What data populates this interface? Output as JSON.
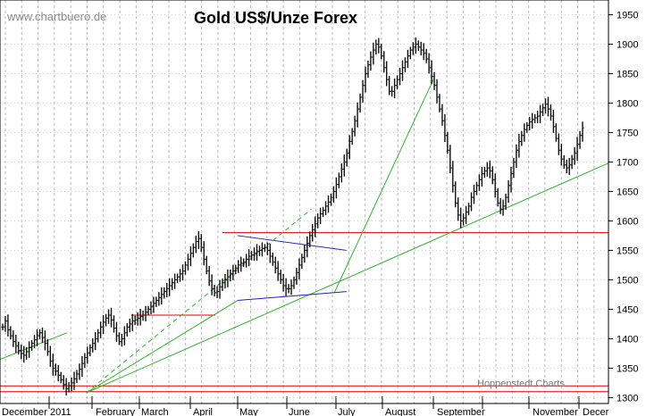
{
  "watermark": "www.chartbuero.de",
  "credit": "Hoppenstedt Charts",
  "chart_data": {
    "type": "ohlc",
    "title": "Gold US$/Unze Forex",
    "xlabel": "",
    "ylabel": "",
    "ylim": [
      1290,
      1975
    ],
    "y_ticks": [
      1300,
      1350,
      1400,
      1450,
      1500,
      1550,
      1600,
      1650,
      1700,
      1750,
      1800,
      1850,
      1900,
      1950
    ],
    "grid": true,
    "month_labels": [
      "December",
      "2011",
      "February",
      "March",
      "April",
      "May",
      "June",
      "July",
      "August",
      "September",
      "November",
      "Decer"
    ],
    "series": [
      {
        "values": [
          1420,
          1430,
          1415,
          1405,
          1395,
          1388,
          1380,
          1375,
          1372,
          1378,
          1385,
          1392,
          1398,
          1405,
          1410,
          1402,
          1392,
          1378,
          1362,
          1350,
          1345,
          1338,
          1330,
          1322,
          1315,
          1320,
          1325,
          1332,
          1340,
          1348,
          1358,
          1368,
          1376,
          1385,
          1392,
          1400,
          1410,
          1420,
          1428,
          1435,
          1440,
          1432,
          1418,
          1405,
          1395,
          1400,
          1410,
          1420,
          1425,
          1430,
          1432,
          1435,
          1438,
          1440,
          1445,
          1450,
          1455,
          1460,
          1465,
          1470,
          1475,
          1480,
          1485,
          1490,
          1495,
          1500,
          1505,
          1510,
          1515,
          1525,
          1535,
          1545,
          1555,
          1565,
          1570,
          1555,
          1535,
          1515,
          1498,
          1485,
          1478,
          1480,
          1488,
          1495,
          1500,
          1505,
          1510,
          1515,
          1520,
          1525,
          1528,
          1530,
          1535,
          1540,
          1542,
          1545,
          1548,
          1550,
          1553,
          1555,
          1550,
          1540,
          1530,
          1520,
          1510,
          1500,
          1490,
          1485,
          1485,
          1490,
          1500,
          1512,
          1525,
          1538,
          1550,
          1562,
          1575,
          1585,
          1595,
          1605,
          1612,
          1618,
          1625,
          1632,
          1640,
          1650,
          1662,
          1675,
          1688,
          1700,
          1715,
          1735,
          1752,
          1770,
          1790,
          1810,
          1830,
          1850,
          1865,
          1878,
          1890,
          1900,
          1895,
          1880,
          1860,
          1840,
          1820,
          1820,
          1830,
          1840,
          1850,
          1860,
          1870,
          1880,
          1890,
          1895,
          1900,
          1895,
          1890,
          1885,
          1875,
          1860,
          1845,
          1830,
          1810,
          1790,
          1770,
          1745,
          1720,
          1690,
          1660,
          1630,
          1610,
          1600,
          1605,
          1615,
          1625,
          1640,
          1650,
          1660,
          1670,
          1680,
          1685,
          1690,
          1685,
          1670,
          1650,
          1630,
          1620,
          1625,
          1640,
          1660,
          1680,
          1700,
          1720,
          1735,
          1745,
          1755,
          1762,
          1768,
          1772,
          1775,
          1778,
          1785,
          1792,
          1798,
          1790,
          1778,
          1760,
          1740,
          1720,
          1705,
          1695,
          1690,
          1695,
          1705,
          1715,
          1730,
          1745,
          1758
        ]
      }
    ],
    "horizontal_lines": [
      1580,
      1440,
      1320,
      1310
    ],
    "trendlines": [
      {
        "color": "green",
        "style": "solid",
        "from": [
          "2011-01-28",
          1308
        ],
        "to": [
          "2011-09-12",
          1580
        ]
      },
      {
        "color": "green",
        "style": "solid",
        "from": [
          "2011-01-28",
          1308
        ],
        "to": [
          "2011-05-02",
          1465
        ]
      },
      {
        "color": "green",
        "style": "solid",
        "from": [
          "2011-06-30",
          1478
        ],
        "to": [
          "2011-09-01",
          1840
        ]
      },
      {
        "color": "blue",
        "style": "solid",
        "from": [
          "2011-05-02",
          1575
        ],
        "to": [
          "2011-07-08",
          1550
        ]
      },
      {
        "color": "blue",
        "style": "solid",
        "from": [
          "2011-05-02",
          1465
        ],
        "to": [
          "2011-07-08",
          1480
        ]
      },
      {
        "color": "green",
        "style": "dashed",
        "from": [
          "2011-01-28",
          1308
        ],
        "to": [
          "2011-06-16",
          1620
        ]
      }
    ]
  }
}
